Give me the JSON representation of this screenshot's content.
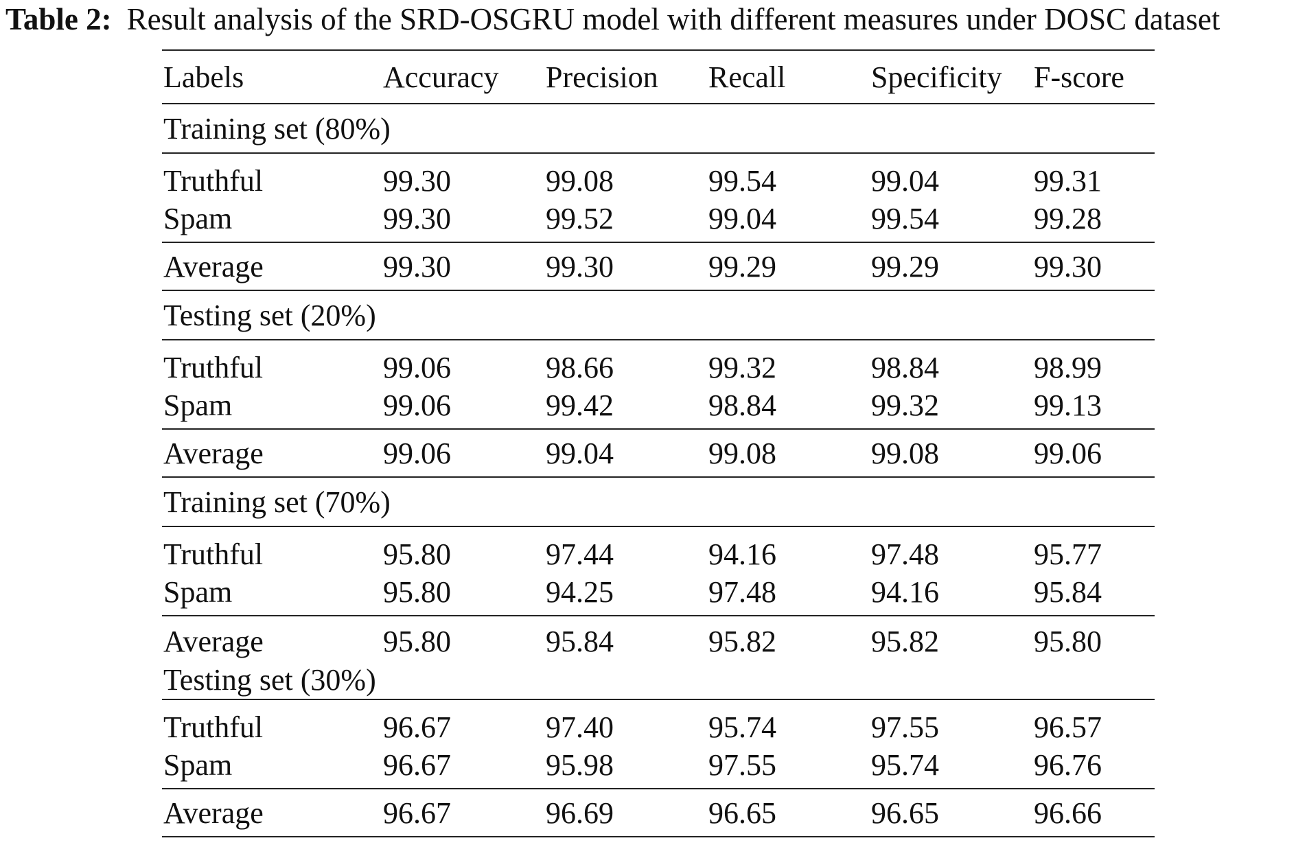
{
  "caption": {
    "label": "Table 2:",
    "text": "Result analysis of the SRD-OSGRU model with different measures under DOSC dataset"
  },
  "columns": [
    "Labels",
    "Accuracy",
    "Precision",
    "Recall",
    "Specificity",
    "F-score"
  ],
  "groups": [
    {
      "title": "Training set (80%)",
      "rows": [
        [
          "Truthful",
          "99.30",
          "99.08",
          "99.54",
          "99.04",
          "99.31"
        ],
        [
          "Spam",
          "99.30",
          "99.52",
          "99.04",
          "99.54",
          "99.28"
        ]
      ],
      "average": [
        "Average",
        "99.30",
        "99.30",
        "99.29",
        "99.29",
        "99.30"
      ]
    },
    {
      "title": "Testing set (20%)",
      "rows": [
        [
          "Truthful",
          "99.06",
          "98.66",
          "99.32",
          "98.84",
          "98.99"
        ],
        [
          "Spam",
          "99.06",
          "99.42",
          "98.84",
          "99.32",
          "99.13"
        ]
      ],
      "average": [
        "Average",
        "99.06",
        "99.04",
        "99.08",
        "99.08",
        "99.06"
      ]
    },
    {
      "title": "Training set (70%)",
      "rows": [
        [
          "Truthful",
          "95.80",
          "97.44",
          "94.16",
          "97.48",
          "95.77"
        ],
        [
          "Spam",
          "95.80",
          "94.25",
          "97.48",
          "94.16",
          "95.84"
        ]
      ],
      "average": [
        "Average",
        "95.80",
        "95.84",
        "95.82",
        "95.82",
        "95.80"
      ]
    },
    {
      "title": "Testing set (30%)",
      "rows": [
        [
          "Truthful",
          "96.67",
          "97.40",
          "95.74",
          "97.55",
          "96.57"
        ],
        [
          "Spam",
          "96.67",
          "95.98",
          "97.55",
          "95.74",
          "96.76"
        ]
      ],
      "average": [
        "Average",
        "96.67",
        "96.69",
        "96.65",
        "96.65",
        "96.66"
      ]
    }
  ]
}
